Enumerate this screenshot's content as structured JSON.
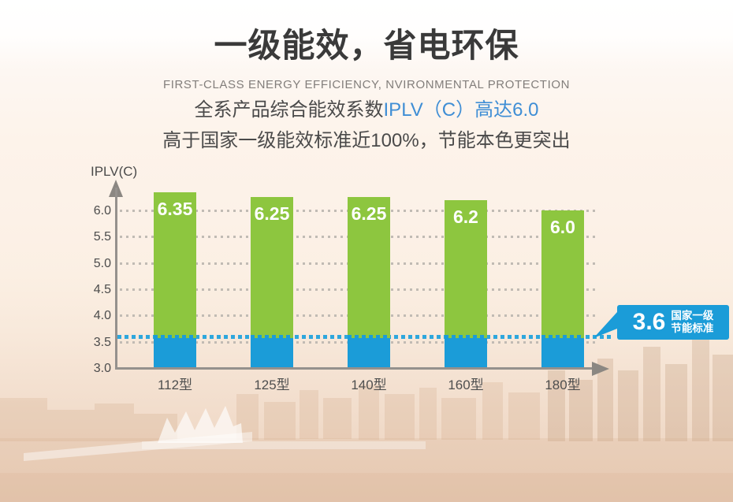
{
  "header": {
    "title": "一级能效，省电环保",
    "subtitle": "FIRST-CLASS ENERGY EFFICIENCY, NVIRONMENTAL PROTECTION"
  },
  "description": {
    "line1_prefix": "全系产品综合能效系数",
    "line1_highlight": "IPLV（C）高达6.0",
    "line2": "高于国家一级能效标准近100%，节能本色更突出"
  },
  "chart_data": {
    "type": "bar",
    "axis_label": "IPLV(C)",
    "categories": [
      "112型",
      "125型",
      "140型",
      "160型",
      "180型"
    ],
    "values": [
      6.35,
      6.25,
      6.25,
      6.2,
      6.0
    ],
    "value_labels": [
      "6.35",
      "6.25",
      "6.25",
      "6.2",
      "6.0"
    ],
    "ylim": [
      3.0,
      6.5
    ],
    "yticks": [
      6.0,
      5.5,
      5.0,
      4.5,
      4.0,
      3.5,
      3.0
    ],
    "ytick_labels": [
      "6.0",
      "5.5",
      "5.0",
      "4.5",
      "4.0",
      "3.5",
      "3.0"
    ],
    "grid": "dotted-horizontal",
    "legend_position": "none",
    "threshold": {
      "value": 3.6,
      "label": "3.6",
      "caption_line1": "国家一级",
      "caption_line2": "节能标准"
    },
    "colors": {
      "bar_above_threshold": "#8dc63f",
      "bar_below_threshold": "#1b9cd8",
      "threshold_line": "#2ea7dd",
      "callout_bg": "#1b9cd8",
      "axis": "#95918d",
      "grid_dot": "#c1bbb4",
      "value_text": "#ffffff",
      "highlight_text": "#3f8ed5"
    },
    "segment_note": "bars are blue below the 3.6 threshold line and green above it"
  }
}
